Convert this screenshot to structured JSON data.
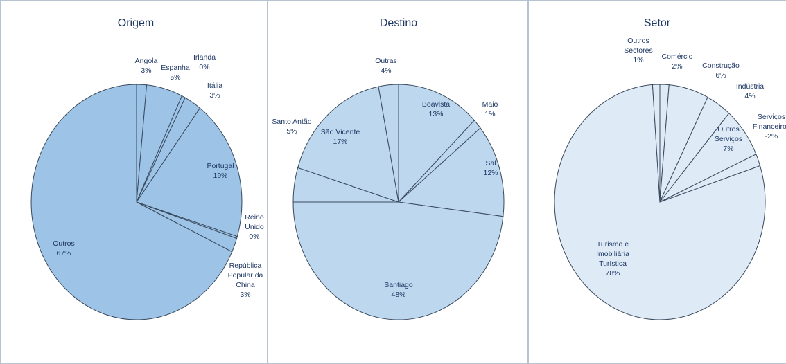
{
  "chart_data": [
    {
      "type": "pie",
      "title": "Origem",
      "color": "#9dc3e6",
      "slices": [
        {
          "label": "Angola",
          "value": 3
        },
        {
          "label": "Espanha",
          "value": 5
        },
        {
          "label": "Irlanda",
          "value": 0
        },
        {
          "label": "Itália",
          "value": 3
        },
        {
          "label": "Portugal",
          "value": 19
        },
        {
          "label": "Reino Unido",
          "value": 0
        },
        {
          "label": "República Popular da China",
          "value": 3
        },
        {
          "label": "Outros",
          "value": 67
        }
      ],
      "labels": [
        {
          "lines": [
            "Angola",
            "3%"
          ]
        },
        {
          "lines": [
            "Espanha",
            "5%"
          ]
        },
        {
          "lines": [
            "Irlanda",
            "0%"
          ]
        },
        {
          "lines": [
            "Itália",
            "3%"
          ]
        },
        {
          "lines": [
            "Portugal",
            "19%"
          ]
        },
        {
          "lines": [
            "Reino",
            "Unido",
            "0%"
          ]
        },
        {
          "lines": [
            "República",
            "Popular da",
            "China",
            "3%"
          ]
        },
        {
          "lines": [
            "Outros",
            "67%"
          ]
        }
      ]
    },
    {
      "type": "pie",
      "title": "Destino",
      "color": "#bdd7ee",
      "slices": [
        {
          "label": "Boavista",
          "value": 13
        },
        {
          "label": "Maio",
          "value": 1
        },
        {
          "label": "Sal",
          "value": 12
        },
        {
          "label": "Santiago",
          "value": 48
        },
        {
          "label": "Santo Antão",
          "value": 5
        },
        {
          "label": "São Vicente",
          "value": 17
        },
        {
          "label": "Outras",
          "value": 4
        }
      ],
      "labels": [
        {
          "lines": [
            "Boavista",
            "13%"
          ]
        },
        {
          "lines": [
            "Maio",
            "1%"
          ]
        },
        {
          "lines": [
            "Sal",
            "12%"
          ]
        },
        {
          "lines": [
            "Santiago",
            "48%"
          ]
        },
        {
          "lines": [
            "Santo Antão",
            "5%"
          ]
        },
        {
          "lines": [
            "São Vicente",
            "17%"
          ]
        },
        {
          "lines": [
            "Outras",
            "4%"
          ]
        }
      ]
    },
    {
      "type": "pie",
      "title": "Setor",
      "color": "#deebf7",
      "slices": [
        {
          "label": "Comércio",
          "value": 2
        },
        {
          "label": "Construção",
          "value": 6
        },
        {
          "label": "Indústria",
          "value": 4
        },
        {
          "label": "Outros Serviços",
          "value": 7
        },
        {
          "label": "Serviços Financeiros",
          "value": -2
        },
        {
          "label": "Turismo e Imobiliária Turística",
          "value": 78
        },
        {
          "label": "Outros Sectores",
          "value": 1
        }
      ],
      "labels": [
        {
          "lines": [
            "Comércio",
            "2%"
          ]
        },
        {
          "lines": [
            "Construção",
            "6%"
          ]
        },
        {
          "lines": [
            "Indústria",
            "4%"
          ]
        },
        {
          "lines": [
            "Outros",
            "Serviços",
            "7%"
          ]
        },
        {
          "lines": [
            "Serviços",
            "Financeiros",
            "-2%"
          ]
        },
        {
          "lines": [
            "Turismo e",
            "Imobiliária",
            "Turística",
            "78%"
          ]
        },
        {
          "lines": [
            "Outros",
            "Sectores",
            "1%"
          ]
        }
      ]
    }
  ]
}
